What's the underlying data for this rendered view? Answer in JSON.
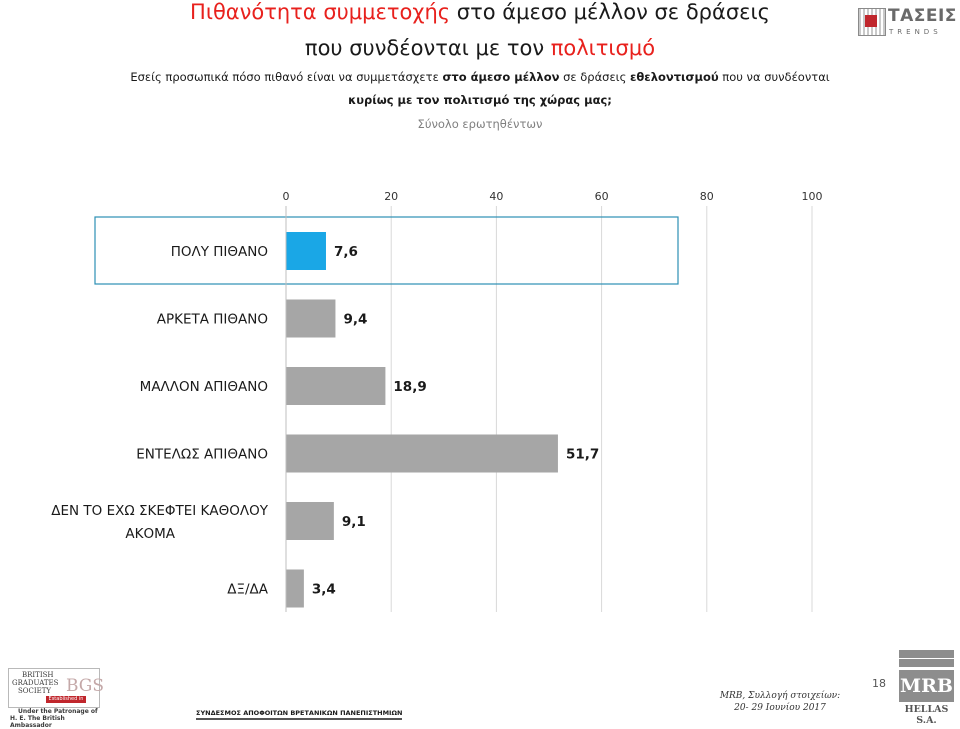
{
  "header": {
    "title_line1_red": "Πιθανότητα συμμετοχής",
    "title_line1_rest": " στο άμεσο μέλλον σε δράσεις",
    "title_line2_start": "που συνδέονται με τον ",
    "title_line2_red": "πολιτισμό",
    "question_p1": "Εσείς προσωπικά πόσο πιθανό είναι να συμμετάσχετε ",
    "question_p2": "στο άμεσο μέλλον",
    "question_p3": " σε δράσεις ",
    "question_p4": "εθελοντισμού",
    "question_p5": " που να συνδέονται",
    "question_line2": "κυρίως με τον πολιτισμό της χώρας μας;",
    "base": "Σύνολο ερωτηθέντων"
  },
  "logos": {
    "taseis_word": "ΤΑΣΕΙΣ",
    "taseis_sub": "TRENDS",
    "bgs_line1": "BRITISH",
    "bgs_line2": "GRADUATES",
    "bgs_line3": "SOCIETY",
    "bgs_mark": "BGS",
    "bgs_est": "Established in 1958",
    "bgs_patron1": "Under the Patronage of",
    "bgs_patron2": "H. E. The British Ambassador",
    "association": "ΣΥΝΔΕΣΜΟΣ ΑΠΟΦΟΙΤΩΝ ΒΡΕΤΑΝΙΚΩΝ ΠΑΝΕΠΙΣΤΗΜΙΩΝ",
    "mrb_word": "MRB",
    "mrb_sub": "HELLAS S.A."
  },
  "footer": {
    "source_line1": "MRB, Συλλογή στοιχείων:",
    "source_line2": "20- 29 Ιουνίου 2017",
    "page_number": "18"
  },
  "colors": {
    "highlight_bar": "#1aa7e6",
    "bar": "#a6a6a6",
    "highlight_box": "#2c8fb4",
    "title_red": "#e8211d"
  },
  "chart_data": {
    "type": "bar",
    "orientation": "horizontal",
    "categories": [
      [
        "ΠΟΛΥ ΠΙΘΑΝΟ"
      ],
      [
        "ΑΡΚΕΤΑ ΠΙΘΑΝΟ"
      ],
      [
        "ΜΑΛΛΟΝ ΑΠΙΘΑΝΟ"
      ],
      [
        "ΕΝΤΕΛΩΣ ΑΠΙΘΑΝΟ"
      ],
      [
        "ΔΕΝ ΤΟ ΕΧΩ ΣΚΕΦΤΕΙ ΚΑΘΟΛΟΥ",
        "ΑΚΟΜΑ"
      ],
      [
        "ΔΞ/ΔΑ"
      ]
    ],
    "values": [
      7.6,
      9.4,
      18.9,
      51.7,
      9.1,
      3.4
    ],
    "value_labels": [
      "7,6",
      "9,4",
      "18,9",
      "51,7",
      "9,1",
      "3,4"
    ],
    "xlim": [
      0,
      100
    ],
    "x_ticks": [
      0,
      20,
      40,
      60,
      80,
      100
    ],
    "x_axis_position": "top",
    "grid": true,
    "highlighted_index": 0
  }
}
